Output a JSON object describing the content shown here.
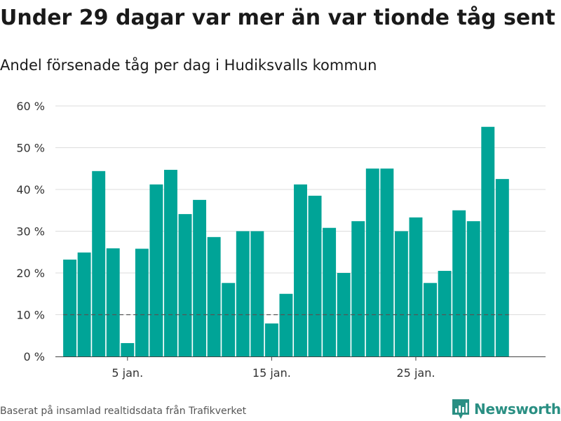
{
  "title": "Under 29 dagar var mer än var tionde tåg sent",
  "subtitle": "Andel försenade tåg per dag i Hudiksvalls kommun",
  "source": "Baserat på insamlad realtidsdata från Trafikverket",
  "brand": "Newsworthy",
  "colors": {
    "bar": "#00a497",
    "grid": "#dddddd",
    "reference_line": "#555555",
    "brand_icon": "#2a8f83"
  },
  "chart_data": {
    "type": "bar",
    "x": [
      1,
      2,
      3,
      4,
      5,
      6,
      7,
      8,
      9,
      10,
      11,
      12,
      13,
      14,
      15,
      16,
      17,
      18,
      19,
      20,
      21,
      22,
      23,
      24,
      25,
      26,
      27,
      28,
      29,
      30,
      31
    ],
    "values": [
      23.2,
      24.9,
      44.4,
      25.9,
      3.2,
      25.8,
      41.2,
      44.7,
      34.1,
      37.5,
      28.6,
      17.6,
      30,
      30,
      7.9,
      15,
      41.2,
      38.5,
      30.8,
      20,
      32.4,
      45,
      45,
      30,
      33.3,
      17.6,
      20.5,
      35,
      32.4,
      55,
      42.5
    ],
    "ylim": [
      0,
      60
    ],
    "yticks": [
      0,
      10,
      20,
      30,
      40,
      50,
      60
    ],
    "ytick_labels": [
      "0 %",
      "10 %",
      "20 %",
      "30 %",
      "40 %",
      "50 %",
      "60 %"
    ],
    "xticks": [
      5,
      15,
      25
    ],
    "xtick_labels": [
      "5 jan.",
      "15 jan.",
      "25 jan."
    ],
    "xlim": [
      0,
      34
    ],
    "reference_line": 10,
    "grid": true,
    "xlabel": "",
    "ylabel": ""
  }
}
